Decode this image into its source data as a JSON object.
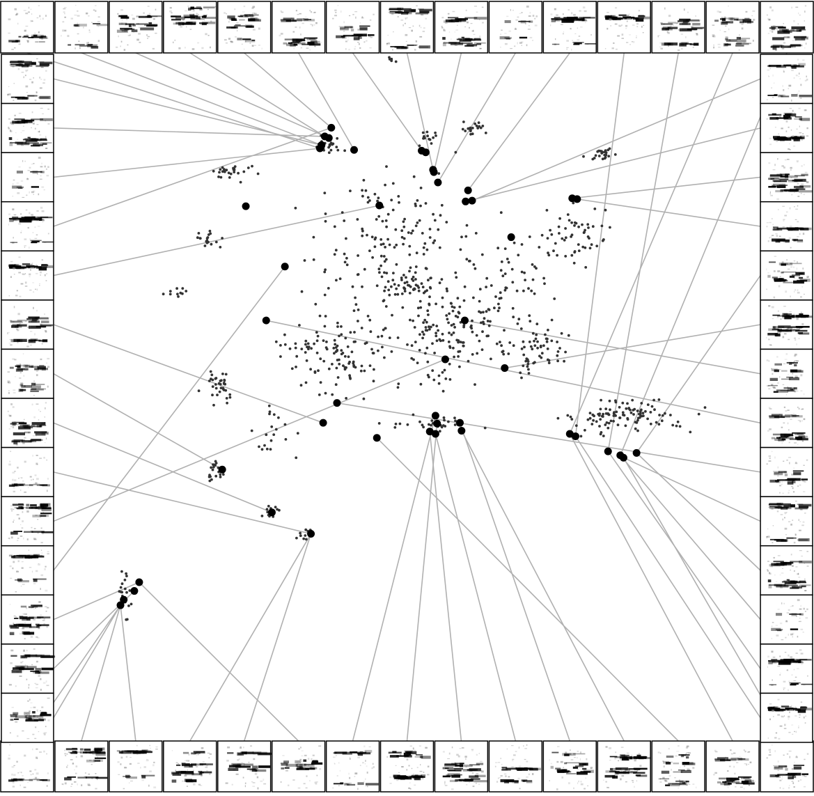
{
  "chart_data": {
    "type": "scatter",
    "title": "",
    "xlabel": "",
    "ylabel": "",
    "grid": false,
    "legend": "none",
    "description_free": true,
    "point_color": "#333333",
    "highlight_color": "#000000",
    "connector_color": "#b0b0b0",
    "spectrogram_color": "#000000",
    "x_range": [
      0,
      1
    ],
    "y_range": [
      0,
      1
    ],
    "clusters": [
      {
        "cx": 0.403,
        "cy": 0.817,
        "sx": 0.01,
        "sy": 0.007,
        "n": 25
      },
      {
        "cx": 0.525,
        "cy": 0.827,
        "sx": 0.008,
        "sy": 0.006,
        "n": 14
      },
      {
        "cx": 0.585,
        "cy": 0.839,
        "sx": 0.012,
        "sy": 0.006,
        "n": 20
      },
      {
        "cx": 0.738,
        "cy": 0.806,
        "sx": 0.012,
        "sy": 0.005,
        "n": 25
      },
      {
        "cx": 0.285,
        "cy": 0.784,
        "sx": 0.02,
        "sy": 0.008,
        "n": 25
      },
      {
        "cx": 0.254,
        "cy": 0.697,
        "sx": 0.01,
        "sy": 0.008,
        "n": 18
      },
      {
        "cx": 0.218,
        "cy": 0.632,
        "sx": 0.012,
        "sy": 0.004,
        "n": 10
      },
      {
        "cx": 0.705,
        "cy": 0.704,
        "sx": 0.03,
        "sy": 0.025,
        "n": 55
      },
      {
        "cx": 0.505,
        "cy": 0.638,
        "sx": 0.03,
        "sy": 0.014,
        "n": 50
      },
      {
        "cx": 0.42,
        "cy": 0.56,
        "sx": 0.05,
        "sy": 0.04,
        "n": 130
      },
      {
        "cx": 0.55,
        "cy": 0.57,
        "sx": 0.04,
        "sy": 0.04,
        "n": 120
      },
      {
        "cx": 0.48,
        "cy": 0.7,
        "sx": 0.06,
        "sy": 0.06,
        "n": 150
      },
      {
        "cx": 0.62,
        "cy": 0.64,
        "sx": 0.04,
        "sy": 0.05,
        "n": 80
      },
      {
        "cx": 0.66,
        "cy": 0.56,
        "sx": 0.03,
        "sy": 0.03,
        "n": 60
      },
      {
        "cx": 0.765,
        "cy": 0.477,
        "sx": 0.05,
        "sy": 0.014,
        "n": 110
      },
      {
        "cx": 0.525,
        "cy": 0.466,
        "sx": 0.04,
        "sy": 0.005,
        "n": 30
      },
      {
        "cx": 0.27,
        "cy": 0.513,
        "sx": 0.012,
        "sy": 0.015,
        "n": 35
      },
      {
        "cx": 0.34,
        "cy": 0.455,
        "sx": 0.03,
        "sy": 0.02,
        "n": 20
      },
      {
        "cx": 0.264,
        "cy": 0.405,
        "sx": 0.007,
        "sy": 0.014,
        "n": 20
      },
      {
        "cx": 0.334,
        "cy": 0.354,
        "sx": 0.01,
        "sy": 0.006,
        "n": 15
      },
      {
        "cx": 0.375,
        "cy": 0.328,
        "sx": 0.008,
        "sy": 0.005,
        "n": 12
      },
      {
        "cx": 0.153,
        "cy": 0.251,
        "sx": 0.006,
        "sy": 0.02,
        "n": 20
      },
      {
        "cx": 0.48,
        "cy": 0.925,
        "sx": 0.003,
        "sy": 0.004,
        "n": 6
      }
    ],
    "highlighted_points": [
      {
        "x": 0.407,
        "y": 0.839
      },
      {
        "x": 0.399,
        "y": 0.828
      },
      {
        "x": 0.404,
        "y": 0.826
      },
      {
        "x": 0.395,
        "y": 0.817
      },
      {
        "x": 0.393,
        "y": 0.813
      },
      {
        "x": 0.435,
        "y": 0.811
      },
      {
        "x": 0.518,
        "y": 0.81
      },
      {
        "x": 0.523,
        "y": 0.808
      },
      {
        "x": 0.532,
        "y": 0.786
      },
      {
        "x": 0.533,
        "y": 0.783
      },
      {
        "x": 0.538,
        "y": 0.77
      },
      {
        "x": 0.575,
        "y": 0.76
      },
      {
        "x": 0.572,
        "y": 0.746
      },
      {
        "x": 0.58,
        "y": 0.747
      },
      {
        "x": 0.703,
        "y": 0.75
      },
      {
        "x": 0.709,
        "y": 0.749
      },
      {
        "x": 0.466,
        "y": 0.741
      },
      {
        "x": 0.302,
        "y": 0.74
      },
      {
        "x": 0.628,
        "y": 0.701
      },
      {
        "x": 0.35,
        "y": 0.664
      },
      {
        "x": 0.571,
        "y": 0.596
      },
      {
        "x": 0.327,
        "y": 0.596
      },
      {
        "x": 0.547,
        "y": 0.547
      },
      {
        "x": 0.62,
        "y": 0.536
      },
      {
        "x": 0.414,
        "y": 0.492
      },
      {
        "x": 0.397,
        "y": 0.467
      },
      {
        "x": 0.273,
        "y": 0.408
      },
      {
        "x": 0.334,
        "y": 0.354
      },
      {
        "x": 0.382,
        "y": 0.327
      },
      {
        "x": 0.171,
        "y": 0.266
      },
      {
        "x": 0.165,
        "y": 0.255
      },
      {
        "x": 0.152,
        "y": 0.244
      },
      {
        "x": 0.148,
        "y": 0.237
      },
      {
        "x": 0.535,
        "y": 0.476
      },
      {
        "x": 0.537,
        "y": 0.466
      },
      {
        "x": 0.528,
        "y": 0.456
      },
      {
        "x": 0.535,
        "y": 0.453
      },
      {
        "x": 0.565,
        "y": 0.467
      },
      {
        "x": 0.567,
        "y": 0.457
      },
      {
        "x": 0.463,
        "y": 0.448
      },
      {
        "x": 0.7,
        "y": 0.453
      },
      {
        "x": 0.707,
        "y": 0.45
      },
      {
        "x": 0.747,
        "y": 0.431
      },
      {
        "x": 0.762,
        "y": 0.426
      },
      {
        "x": 0.782,
        "y": 0.429
      },
      {
        "x": 0.766,
        "y": 0.423
      }
    ],
    "thumbnail_links": {
      "top": [
        [
          0,
          4
        ],
        [
          1,
          3
        ],
        [
          2,
          2
        ],
        [
          3,
          1
        ],
        [
          4,
          0
        ],
        [
          5,
          5
        ],
        [
          6,
          6
        ],
        [
          7,
          8
        ],
        [
          8,
          9
        ],
        [
          9,
          10
        ],
        [
          10,
          11
        ],
        [
          11,
          41
        ],
        [
          12,
          42
        ],
        [
          13,
          40
        ],
        [
          14,
          43
        ]
      ],
      "left": [
        [
          0,
          3
        ],
        [
          1,
          1
        ],
        [
          2,
          4
        ],
        [
          3,
          0
        ],
        [
          4,
          16
        ],
        [
          5,
          25
        ],
        [
          6,
          26
        ],
        [
          7,
          27
        ],
        [
          8,
          28
        ],
        [
          9,
          22
        ],
        [
          10,
          19
        ],
        [
          11,
          29
        ],
        [
          12,
          30
        ],
        [
          13,
          31
        ]
      ],
      "right": [
        [
          0,
          13
        ],
        [
          1,
          12
        ],
        [
          2,
          14
        ],
        [
          3,
          15
        ],
        [
          4,
          44
        ],
        [
          5,
          23
        ],
        [
          6,
          20
        ],
        [
          7,
          21
        ],
        [
          8,
          24
        ],
        [
          9,
          45
        ],
        [
          10,
          44
        ],
        [
          11,
          43
        ],
        [
          12,
          42
        ],
        [
          13,
          41
        ]
      ],
      "bottom": [
        [
          0,
          32
        ],
        [
          1,
          32
        ],
        [
          2,
          32
        ],
        [
          3,
          28
        ],
        [
          4,
          28
        ],
        [
          5,
          29
        ],
        [
          6,
          33
        ],
        [
          7,
          34
        ],
        [
          8,
          35
        ],
        [
          9,
          36
        ],
        [
          10,
          37
        ],
        [
          11,
          38
        ],
        [
          12,
          39
        ],
        [
          13,
          40
        ],
        [
          14,
          45
        ]
      ]
    }
  }
}
